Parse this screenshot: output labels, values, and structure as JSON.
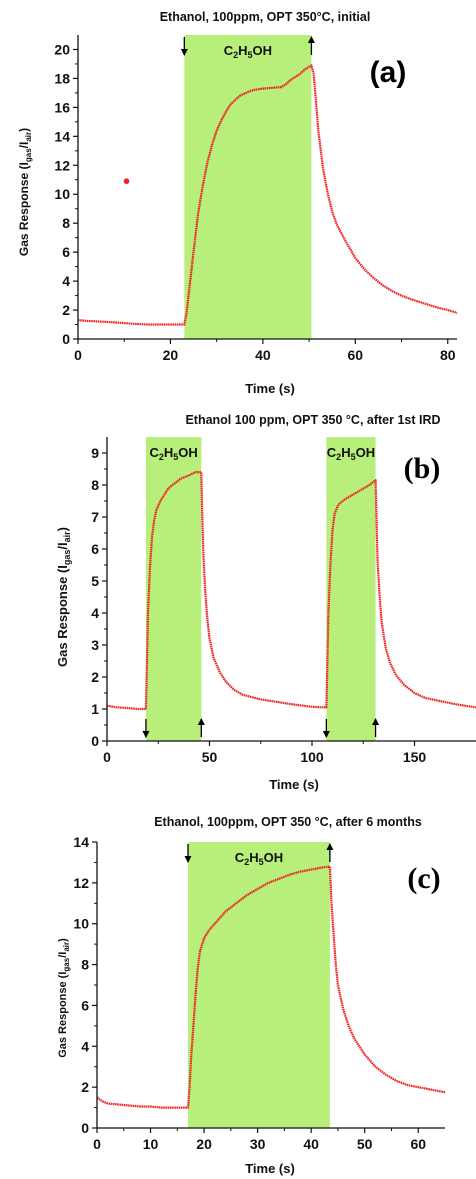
{
  "colors": {
    "shade": "#b8ee7a",
    "curve": "#ee2222",
    "axis": "#111111"
  },
  "chart_data": [
    {
      "panel": "(a)",
      "type": "line",
      "title": "Ethanol, 100ppm, OPT 350°C, initial",
      "xlabel": "Time (s)",
      "ylabel": {
        "main": "Gas Response (I",
        "sub1": "gas",
        "mid": "/I",
        "sub2": "air",
        "end": ")"
      },
      "xlim": [
        0,
        82
      ],
      "ylim": [
        0,
        21
      ],
      "xticks": [
        0,
        20,
        40,
        60,
        80
      ],
      "yticks": [
        0,
        2,
        4,
        6,
        8,
        10,
        12,
        14,
        16,
        18,
        20
      ],
      "gas_label": {
        "text": "C2H5OH",
        "pre1": "C",
        "sub1": "2",
        "pre2": "H",
        "sub2": "5",
        "post": "OH"
      },
      "exposure_windows": [
        [
          23,
          50.5
        ]
      ],
      "arrows": [
        {
          "x": 23,
          "dir": "down"
        },
        {
          "x": 50.5,
          "dir": "up"
        }
      ],
      "outlier_points": [
        [
          10.5,
          10.9
        ]
      ],
      "series": [
        {
          "x": [
            0,
            2,
            5,
            8,
            10,
            12,
            15,
            18,
            20,
            22,
            23,
            23.5,
            24,
            24.5,
            25,
            25.5,
            26,
            27,
            28,
            29,
            30,
            31,
            32,
            33,
            34,
            35,
            36,
            37,
            38,
            40,
            42,
            44,
            45,
            46,
            47,
            48,
            49,
            50,
            50.5,
            51,
            51.5,
            52,
            53,
            54,
            55,
            56,
            58,
            60,
            62,
            64,
            66,
            68,
            70,
            72,
            74,
            76,
            78,
            80,
            82
          ],
          "y": [
            1.3,
            1.25,
            1.2,
            1.15,
            1.1,
            1.05,
            1.0,
            1.0,
            1.0,
            1.0,
            1.0,
            1.8,
            3.2,
            4.6,
            6.0,
            7.4,
            8.7,
            10.6,
            12.2,
            13.4,
            14.4,
            15.1,
            15.7,
            16.2,
            16.5,
            16.8,
            16.95,
            17.1,
            17.2,
            17.3,
            17.35,
            17.4,
            17.6,
            17.9,
            18.1,
            18.3,
            18.6,
            18.8,
            18.9,
            18.3,
            16.4,
            14.4,
            11.8,
            10.1,
            8.8,
            7.9,
            6.7,
            5.6,
            4.8,
            4.2,
            3.7,
            3.3,
            3.0,
            2.75,
            2.55,
            2.35,
            2.15,
            2.0,
            1.8
          ]
        }
      ]
    },
    {
      "panel": "(b)",
      "type": "line",
      "title": "Ethanol 100 ppm, OPT 350 °C, after 1st IRD",
      "xlabel": "Time (s)",
      "ylabel": {
        "main": "Gas Response (I",
        "sub1": "gas",
        "mid": "/I",
        "sub2": "air",
        "end": ")"
      },
      "xlim": [
        0,
        180
      ],
      "ylim": [
        0,
        9.5
      ],
      "xticks": [
        0,
        50,
        100,
        150
      ],
      "yticks": [
        0,
        1,
        2,
        3,
        4,
        5,
        6,
        7,
        8,
        9
      ],
      "gas_label": {
        "text": "C2H5OH",
        "pre1": "C",
        "sub1": "2",
        "pre2": "H",
        "sub2": "5",
        "post": "OH"
      },
      "exposure_windows": [
        [
          19,
          46
        ],
        [
          107,
          131
        ]
      ],
      "arrows": [
        {
          "x": 19,
          "dir": "down"
        },
        {
          "x": 46,
          "dir": "up"
        },
        {
          "x": 107,
          "dir": "down"
        },
        {
          "x": 131,
          "dir": "up"
        }
      ],
      "outlier_points": [],
      "series": [
        {
          "x": [
            0,
            5,
            10,
            15,
            19,
            19.5,
            20,
            21,
            22,
            23,
            24,
            26,
            28,
            30,
            33,
            36,
            40,
            43,
            46,
            46.5,
            47,
            48,
            49,
            50,
            52,
            55,
            58,
            62,
            66,
            70,
            75,
            80,
            90,
            100,
            105,
            107,
            107.5,
            108,
            109,
            110,
            111,
            113,
            116,
            120,
            124,
            128,
            131,
            131.5,
            132,
            133,
            134,
            136,
            138,
            141,
            145,
            150,
            155,
            160,
            170,
            180
          ],
          "y": [
            1.1,
            1.05,
            1.03,
            1.0,
            1.0,
            2.5,
            4.0,
            5.5,
            6.4,
            6.9,
            7.2,
            7.5,
            7.7,
            7.9,
            8.05,
            8.2,
            8.3,
            8.4,
            8.4,
            7.0,
            5.8,
            4.6,
            3.8,
            3.2,
            2.6,
            2.15,
            1.85,
            1.6,
            1.45,
            1.38,
            1.3,
            1.25,
            1.15,
            1.07,
            1.05,
            1.05,
            2.5,
            4.0,
            5.5,
            6.6,
            7.1,
            7.4,
            7.55,
            7.7,
            7.85,
            8.0,
            8.15,
            6.8,
            5.6,
            4.5,
            3.7,
            2.9,
            2.45,
            2.05,
            1.75,
            1.5,
            1.35,
            1.28,
            1.15,
            1.05
          ]
        }
      ]
    },
    {
      "panel": "(c)",
      "type": "line",
      "title": "Ethanol, 100ppm, OPT 350 °C, after 6 months",
      "xlabel": "Time (s)",
      "ylabel": {
        "main": "Gas Response (I",
        "sub1": "gas",
        "mid": "/I",
        "sub2": "air",
        "end": ")"
      },
      "xlim": [
        0,
        65
      ],
      "ylim": [
        0,
        14
      ],
      "xticks": [
        0,
        10,
        20,
        30,
        40,
        50,
        60
      ],
      "yticks": [
        0,
        2,
        4,
        6,
        8,
        10,
        12,
        14
      ],
      "gas_label": {
        "text": "C2H5OH",
        "pre1": "C",
        "sub1": "2",
        "pre2": "H",
        "sub2": "5",
        "post": "OH"
      },
      "exposure_windows": [
        [
          17,
          43.5
        ]
      ],
      "arrows": [
        {
          "x": 17,
          "dir": "down"
        },
        {
          "x": 43.5,
          "dir": "up"
        }
      ],
      "outlier_points": [],
      "series": [
        {
          "x": [
            0,
            1,
            2,
            4,
            6,
            8,
            10,
            12,
            14,
            16,
            17,
            17.3,
            17.6,
            18,
            18.4,
            18.8,
            19.2,
            20,
            21,
            22,
            23,
            24,
            26,
            28,
            30,
            32,
            34,
            36,
            38,
            40,
            42,
            43.5,
            43.8,
            44.2,
            44.6,
            45,
            46,
            47,
            48,
            50,
            52,
            54,
            56,
            58,
            60,
            62,
            65
          ],
          "y": [
            1.5,
            1.3,
            1.2,
            1.15,
            1.1,
            1.05,
            1.05,
            1.0,
            1.0,
            1.0,
            1.0,
            2.0,
            3.5,
            5.0,
            6.5,
            7.8,
            8.6,
            9.3,
            9.7,
            10.0,
            10.3,
            10.6,
            11.0,
            11.4,
            11.7,
            12.0,
            12.2,
            12.4,
            12.55,
            12.65,
            12.75,
            12.8,
            11.0,
            9.5,
            8.0,
            7.0,
            5.8,
            5.0,
            4.4,
            3.6,
            3.0,
            2.6,
            2.3,
            2.1,
            2.0,
            1.9,
            1.75
          ]
        }
      ]
    }
  ]
}
